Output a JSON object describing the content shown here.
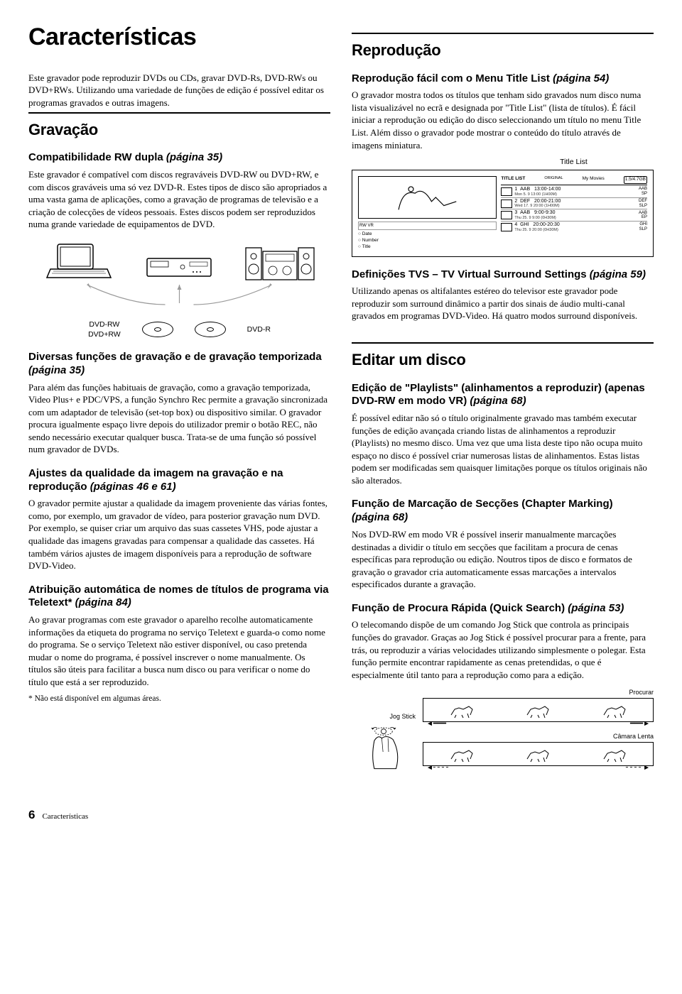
{
  "page_title": "Características",
  "intro": "Este gravador pode reproduzir DVDs ou CDs, gravar DVD-Rs, DVD-RWs ou DVD+RWs. Utilizando uma variedade de funções de edição é possível editar os programas gravados e outras imagens.",
  "gravacao": {
    "heading": "Gravação",
    "compat": {
      "title": "Compatibilidade RW dupla ",
      "page": "(página 35)",
      "body": "Este gravador é compatível com discos regraváveis DVD-RW ou DVD+RW, e com discos graváveis uma só vez DVD-R. Estes tipos de disco são apropriados a uma vasta gama de aplicações, como a gravação de programas de televisão e a criação de colecções de vídeos pessoais. Estes discos podem ser reproduzidos numa grande variedade de equipamentos de DVD."
    },
    "disc_left_label_1": "DVD-RW",
    "disc_left_label_2": "DVD+RW",
    "disc_right_label": "DVD-R",
    "diversas": {
      "title": "Diversas funções de gravação e de gravação temporizada ",
      "page": "(página 35)",
      "body": "Para além das funções habituais de gravação, como a gravação temporizada, Video Plus+ e PDC/VPS, a função Synchro Rec permite a gravação sincronizada com um adaptador de televisão (set-top box) ou dispositivo similar. O gravador procura igualmente espaço livre depois do utilizador premir o botão REC, não sendo necessário executar qualquer busca. Trata-se de uma função só possível num gravador de DVDs."
    },
    "qualidade": {
      "title": "Ajustes da qualidade da imagem na gravação e na reprodução ",
      "page": "(páginas 46 e 61)",
      "body": "O gravador permite ajustar a qualidade da imagem proveniente das várias fontes, como, por exemplo, um gravador de vídeo, para posterior gravação num DVD. Por exemplo, se quiser criar um arquivo das suas cassetes VHS, pode ajustar a qualidade das imagens gravadas para compensar a qualidade das cassetes. Há também vários ajustes de imagem disponíveis para a reprodução de software DVD-Video."
    },
    "teletext": {
      "title": "Atribuição automática de nomes de títulos de programa via Teletext* ",
      "page": "(página 84)",
      "body": "Ao gravar programas com este gravador o aparelho recolhe automaticamente informações da etiqueta do programa no serviço Teletext e guarda-o como nome do programa. Se o serviço Teletext não estiver disponível, ou caso pretenda mudar o nome do programa, é possível inscrever o nome manualmente. Os títulos são úteis para facilitar a busca num disco ou para verificar o nome do título que está a ser reproduzido.",
      "footnote": "* Não está disponível em algumas áreas."
    }
  },
  "reproducao": {
    "heading": "Reprodução",
    "facil": {
      "title": "Reprodução fácil com o Menu Title List ",
      "page": "(página 54)",
      "body": "O gravador mostra todos os títulos que tenham sido gravados num disco numa lista visualizável no ecrã e designada por \"Title List\" (lista de títulos). É fácil iniciar a reprodução ou edição do disco seleccionando um título no menu Title List. Além disso o gravador pode mostrar o conteúdo do título através de imagens miniatura."
    },
    "title_list_label": "Title List",
    "tl_header_left": "TITLE LIST",
    "tl_header_orig": "ORIGINAL",
    "tl_header_right": "My Movies",
    "tl_header_gb": "1.5/4.7GB",
    "tl_sort_date": "Date",
    "tl_sort_number": "Number",
    "tl_sort_title": "Title",
    "tl_rows": [
      {
        "n": "1",
        "t": "AAB",
        "time": "13:00-14:00",
        "sub": "Mon 5. 9 13:00 (1H00M)",
        "q": "AAB",
        "m": "SP"
      },
      {
        "n": "2",
        "t": "DEF",
        "time": "20:00-21:00",
        "sub": "Wed 17. 9 20:00 (1H00M)",
        "q": "DEF",
        "m": "SLP"
      },
      {
        "n": "3",
        "t": "AAB",
        "time": "9:00-9:30",
        "sub": "Thu 25. 9 9:00 (0H30M)",
        "q": "AAB",
        "m": "EP"
      },
      {
        "n": "4",
        "t": "GHI",
        "time": "20:00-20:30",
        "sub": "Thu 25. 9 20:00 (0H30M)",
        "q": "GHI",
        "m": "SLP"
      }
    ],
    "tvs": {
      "title": "Definições TVS – TV Virtual Surround Settings ",
      "page": "(página 59)",
      "body": "Utilizando apenas os altifalantes estéreo do televisor este gravador pode reproduzir som surround dinâmico a partir dos sinais de áudio multi-canal gravados em programas DVD-Video. Há quatro modos surround disponíveis."
    }
  },
  "editar": {
    "heading": "Editar um disco",
    "playlists": {
      "title": "Edição de \"Playlists\" (alinhamentos a reproduzir) (apenas DVD-RW em modo VR) ",
      "page": "(página 68)",
      "body": "É possível editar não só o título originalmente gravado mas também executar funções de edição avançada criando listas de alinhamentos a reproduzir (Playlists) no mesmo disco. Uma vez que uma lista deste tipo não ocupa muito espaço no disco é possível criar numerosas listas de alinhamentos. Estas listas podem ser modificadas sem quaisquer limitações porque os títulos originais não são alterados."
    },
    "chapter": {
      "title": "Função de Marcação de Secções (Chapter Marking) ",
      "page": "(página 68)",
      "body": "Nos DVD-RW em modo VR é possível inserir manualmente marcações destinadas a dividir o título em secções que facilitam a procura de cenas específicas para reprodução ou edição. Noutros tipos de disco e formatos de gravação o gravador cria automaticamente essas marcações a intervalos especificados durante a gravação."
    },
    "quick": {
      "title": "Função de Procura Rápida (Quick Search) ",
      "page": "(página 53)",
      "body": "O telecomando dispõe de um comando Jog Stick que controla as principais funções do gravador. Graças ao Jog Stick é possível procurar para a frente, para trás, ou reproduzir a várias velocidades utilizando simplesmente o polegar. Esta função permite encontrar rapidamente as cenas pretendidas, o que é especialmente útil tanto para a reprodução como para a edição."
    },
    "jog_stick_label": "Jog Stick",
    "procurar_label": "Procurar",
    "camara_label": "Câmara Lenta"
  },
  "footer": {
    "num": "6",
    "text": "Características"
  }
}
